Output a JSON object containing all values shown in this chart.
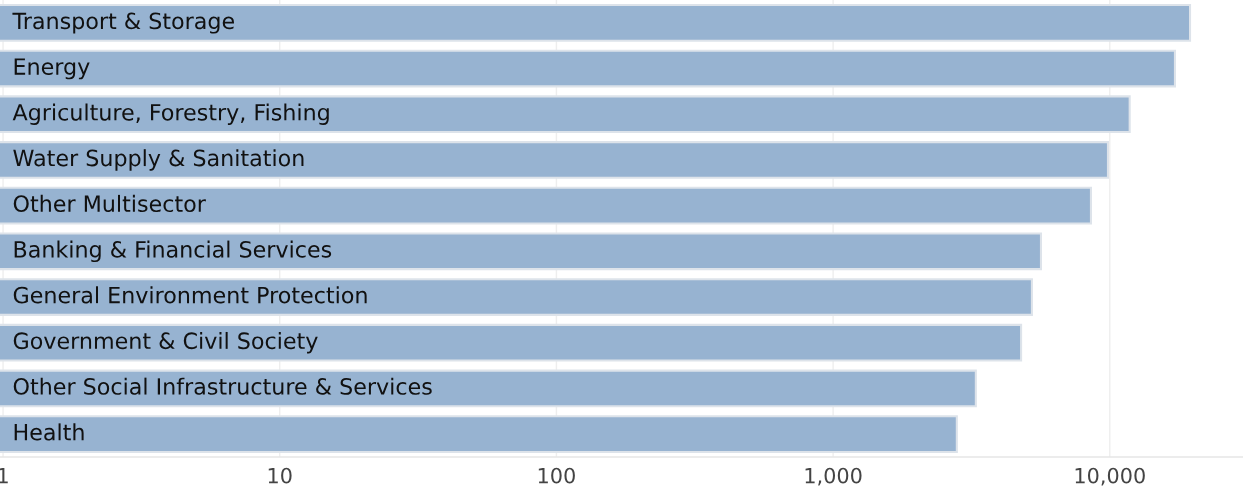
{
  "chart_data": {
    "type": "bar",
    "orientation": "horizontal",
    "log": "x",
    "categories": [
      "Transport & Storage",
      "Energy",
      "Agriculture, Forestry, Fishing",
      "Water Supply & Sanitation",
      "Other Multisector",
      "Banking & Financial Services",
      "General Environment Protection",
      "Government & Civil Society",
      "Other Social Infrastructure & Services",
      "Health"
    ],
    "values": [
      19500,
      17200,
      11800,
      9850,
      8550,
      5640,
      5230,
      4780,
      3280,
      2800
    ],
    "color": "#97b3d1",
    "xlim": [
      0.975,
      30300
    ],
    "xticks": [
      1,
      10,
      100,
      {
        "value": 1000,
        "label": "1,000"
      },
      {
        "value": 10000,
        "label": "10,000"
      }
    ],
    "grid": "x"
  }
}
